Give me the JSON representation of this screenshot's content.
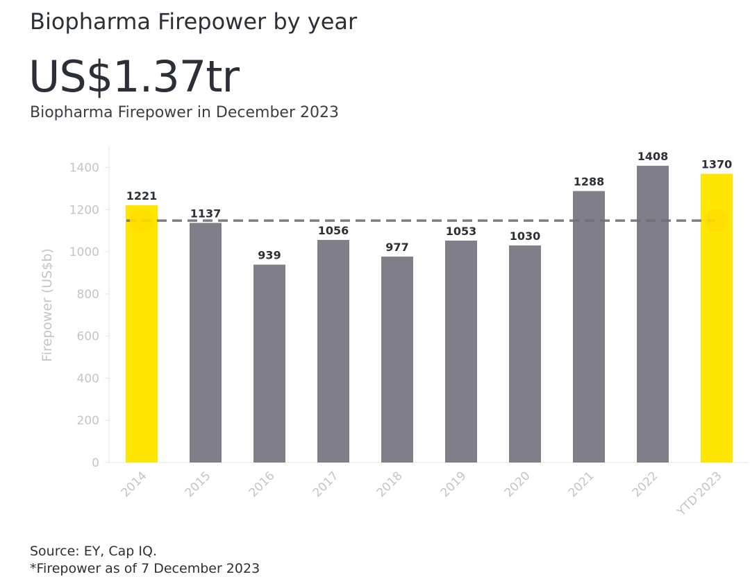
{
  "header": {
    "title": "Biopharma Firepower by year",
    "headline_value": "US$1.37tr",
    "subtitle": "Biopharma Firepower in December 2023"
  },
  "footer": {
    "source": "Source: EY, Cap IQ.",
    "note": "*Firepower as of 7 December 2023"
  },
  "colors": {
    "highlight_bar": "#ffe600",
    "regular_bar": "#7f7e89",
    "average_line": "#6f6f75",
    "axis_text": "#c4c4c8",
    "label_text": "#2e2e38"
  },
  "chart_data": {
    "type": "bar",
    "ylabel": "Firepower (US$b)",
    "ylim": [
      0,
      1500
    ],
    "yticks": [
      0,
      200,
      400,
      600,
      800,
      1000,
      1200,
      1400
    ],
    "categories": [
      "2014",
      "2015",
      "2016",
      "2017",
      "2018",
      "2019",
      "2020",
      "2021",
      "2022",
      "YTD'2023"
    ],
    "values": [
      1221,
      1137,
      939,
      1056,
      977,
      1053,
      1030,
      1288,
      1408,
      1370
    ],
    "highlighted": [
      "2014",
      "YTD'2023"
    ],
    "reference_line": {
      "style": "dashed",
      "value": 1148
    },
    "grid": false
  }
}
